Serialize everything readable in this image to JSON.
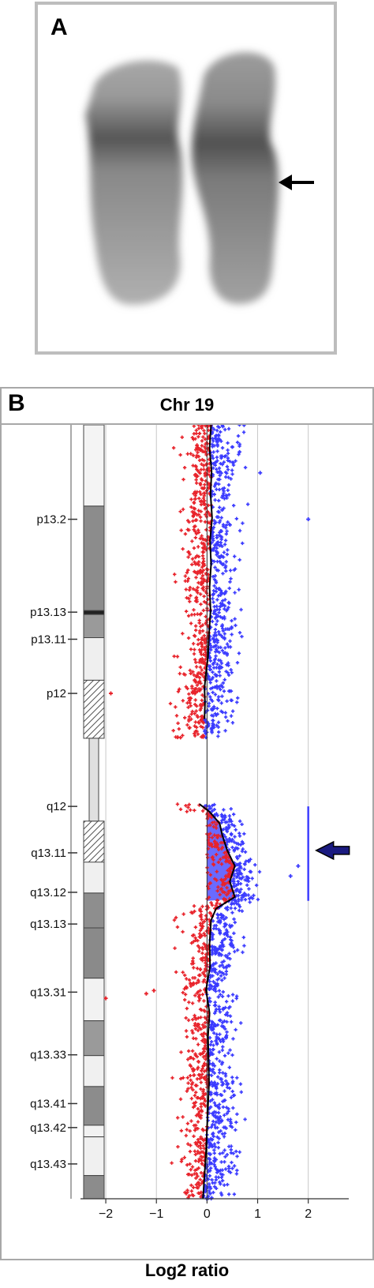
{
  "panelA": {
    "label": "A"
  },
  "panelB": {
    "label": "B"
  },
  "chart_data": {
    "type": "scatter",
    "title": "Chr 19",
    "xlabel": "Log2 ratio",
    "xlim": [
      -2.5,
      2.8
    ],
    "xticks": [
      -2,
      -1,
      0,
      1,
      2
    ],
    "xtick_labels": [
      "−2",
      "−1",
      "0",
      "1",
      "2"
    ],
    "grid": true,
    "bands": [
      {
        "label": "p13.2",
        "pos": 0.122
      },
      {
        "label": "p13.13",
        "pos": 0.242
      },
      {
        "label": "p13.11",
        "pos": 0.277
      },
      {
        "label": "p12",
        "pos": 0.347
      },
      {
        "label": "q12",
        "pos": 0.493
      },
      {
        "label": "q13.11",
        "pos": 0.553
      },
      {
        "label": "q13.12",
        "pos": 0.604
      },
      {
        "label": "q13.13",
        "pos": 0.645
      },
      {
        "label": "q13.31",
        "pos": 0.733
      },
      {
        "label": "q13.33",
        "pos": 0.814
      },
      {
        "label": "q13.41",
        "pos": 0.877
      },
      {
        "label": "q13.42",
        "pos": 0.908
      },
      {
        "label": "q13.43",
        "pos": 0.955
      }
    ],
    "gain_region": {
      "from": 0.493,
      "to": 0.615,
      "value": 2,
      "color": "#3f3fff"
    },
    "trend": [
      [
        0.0,
        0.08
      ],
      [
        0.03,
        0.05
      ],
      [
        0.06,
        0.09
      ],
      [
        0.09,
        0.07
      ],
      [
        0.12,
        0.1
      ],
      [
        0.15,
        0.06
      ],
      [
        0.18,
        0.08
      ],
      [
        0.21,
        0.05
      ],
      [
        0.24,
        0.07
      ],
      [
        0.27,
        0.04
      ],
      [
        0.3,
        0.02
      ],
      [
        0.32,
        -0.02
      ],
      [
        0.34,
        -0.05
      ],
      [
        0.36,
        -0.04
      ],
      [
        0.38,
        -0.05
      ],
      [
        0.49,
        -0.15
      ],
      [
        0.5,
        0.05
      ],
      [
        0.515,
        0.25
      ],
      [
        0.53,
        0.3
      ],
      [
        0.55,
        0.4
      ],
      [
        0.57,
        0.55
      ],
      [
        0.59,
        0.45
      ],
      [
        0.61,
        0.55
      ],
      [
        0.625,
        0.18
      ],
      [
        0.64,
        0.08
      ],
      [
        0.67,
        0.05
      ],
      [
        0.7,
        0.06
      ],
      [
        0.73,
        -0.02
      ],
      [
        0.76,
        0.05
      ],
      [
        0.79,
        0.02
      ],
      [
        0.82,
        0.03
      ],
      [
        0.85,
        0.04
      ],
      [
        0.88,
        0.02
      ],
      [
        0.91,
        0.0
      ],
      [
        0.94,
        -0.02
      ],
      [
        0.97,
        -0.05
      ],
      [
        1.0,
        -0.08
      ]
    ],
    "outliers": [
      {
        "y": 0.122,
        "x": 2.0
      },
      {
        "y": 0.062,
        "x": 1.05
      },
      {
        "y": 0.347,
        "x": -1.9
      },
      {
        "y": 0.741,
        "x": -2.0
      },
      {
        "y": 0.735,
        "x": -1.2
      },
      {
        "y": 0.731,
        "x": -1.05
      },
      {
        "y": 0.583,
        "x": 1.65
      },
      {
        "y": 0.57,
        "x": 1.8
      }
    ],
    "colors": {
      "loss": "#e8222a",
      "gain": "#3a3aff",
      "trend": "#000000"
    }
  }
}
